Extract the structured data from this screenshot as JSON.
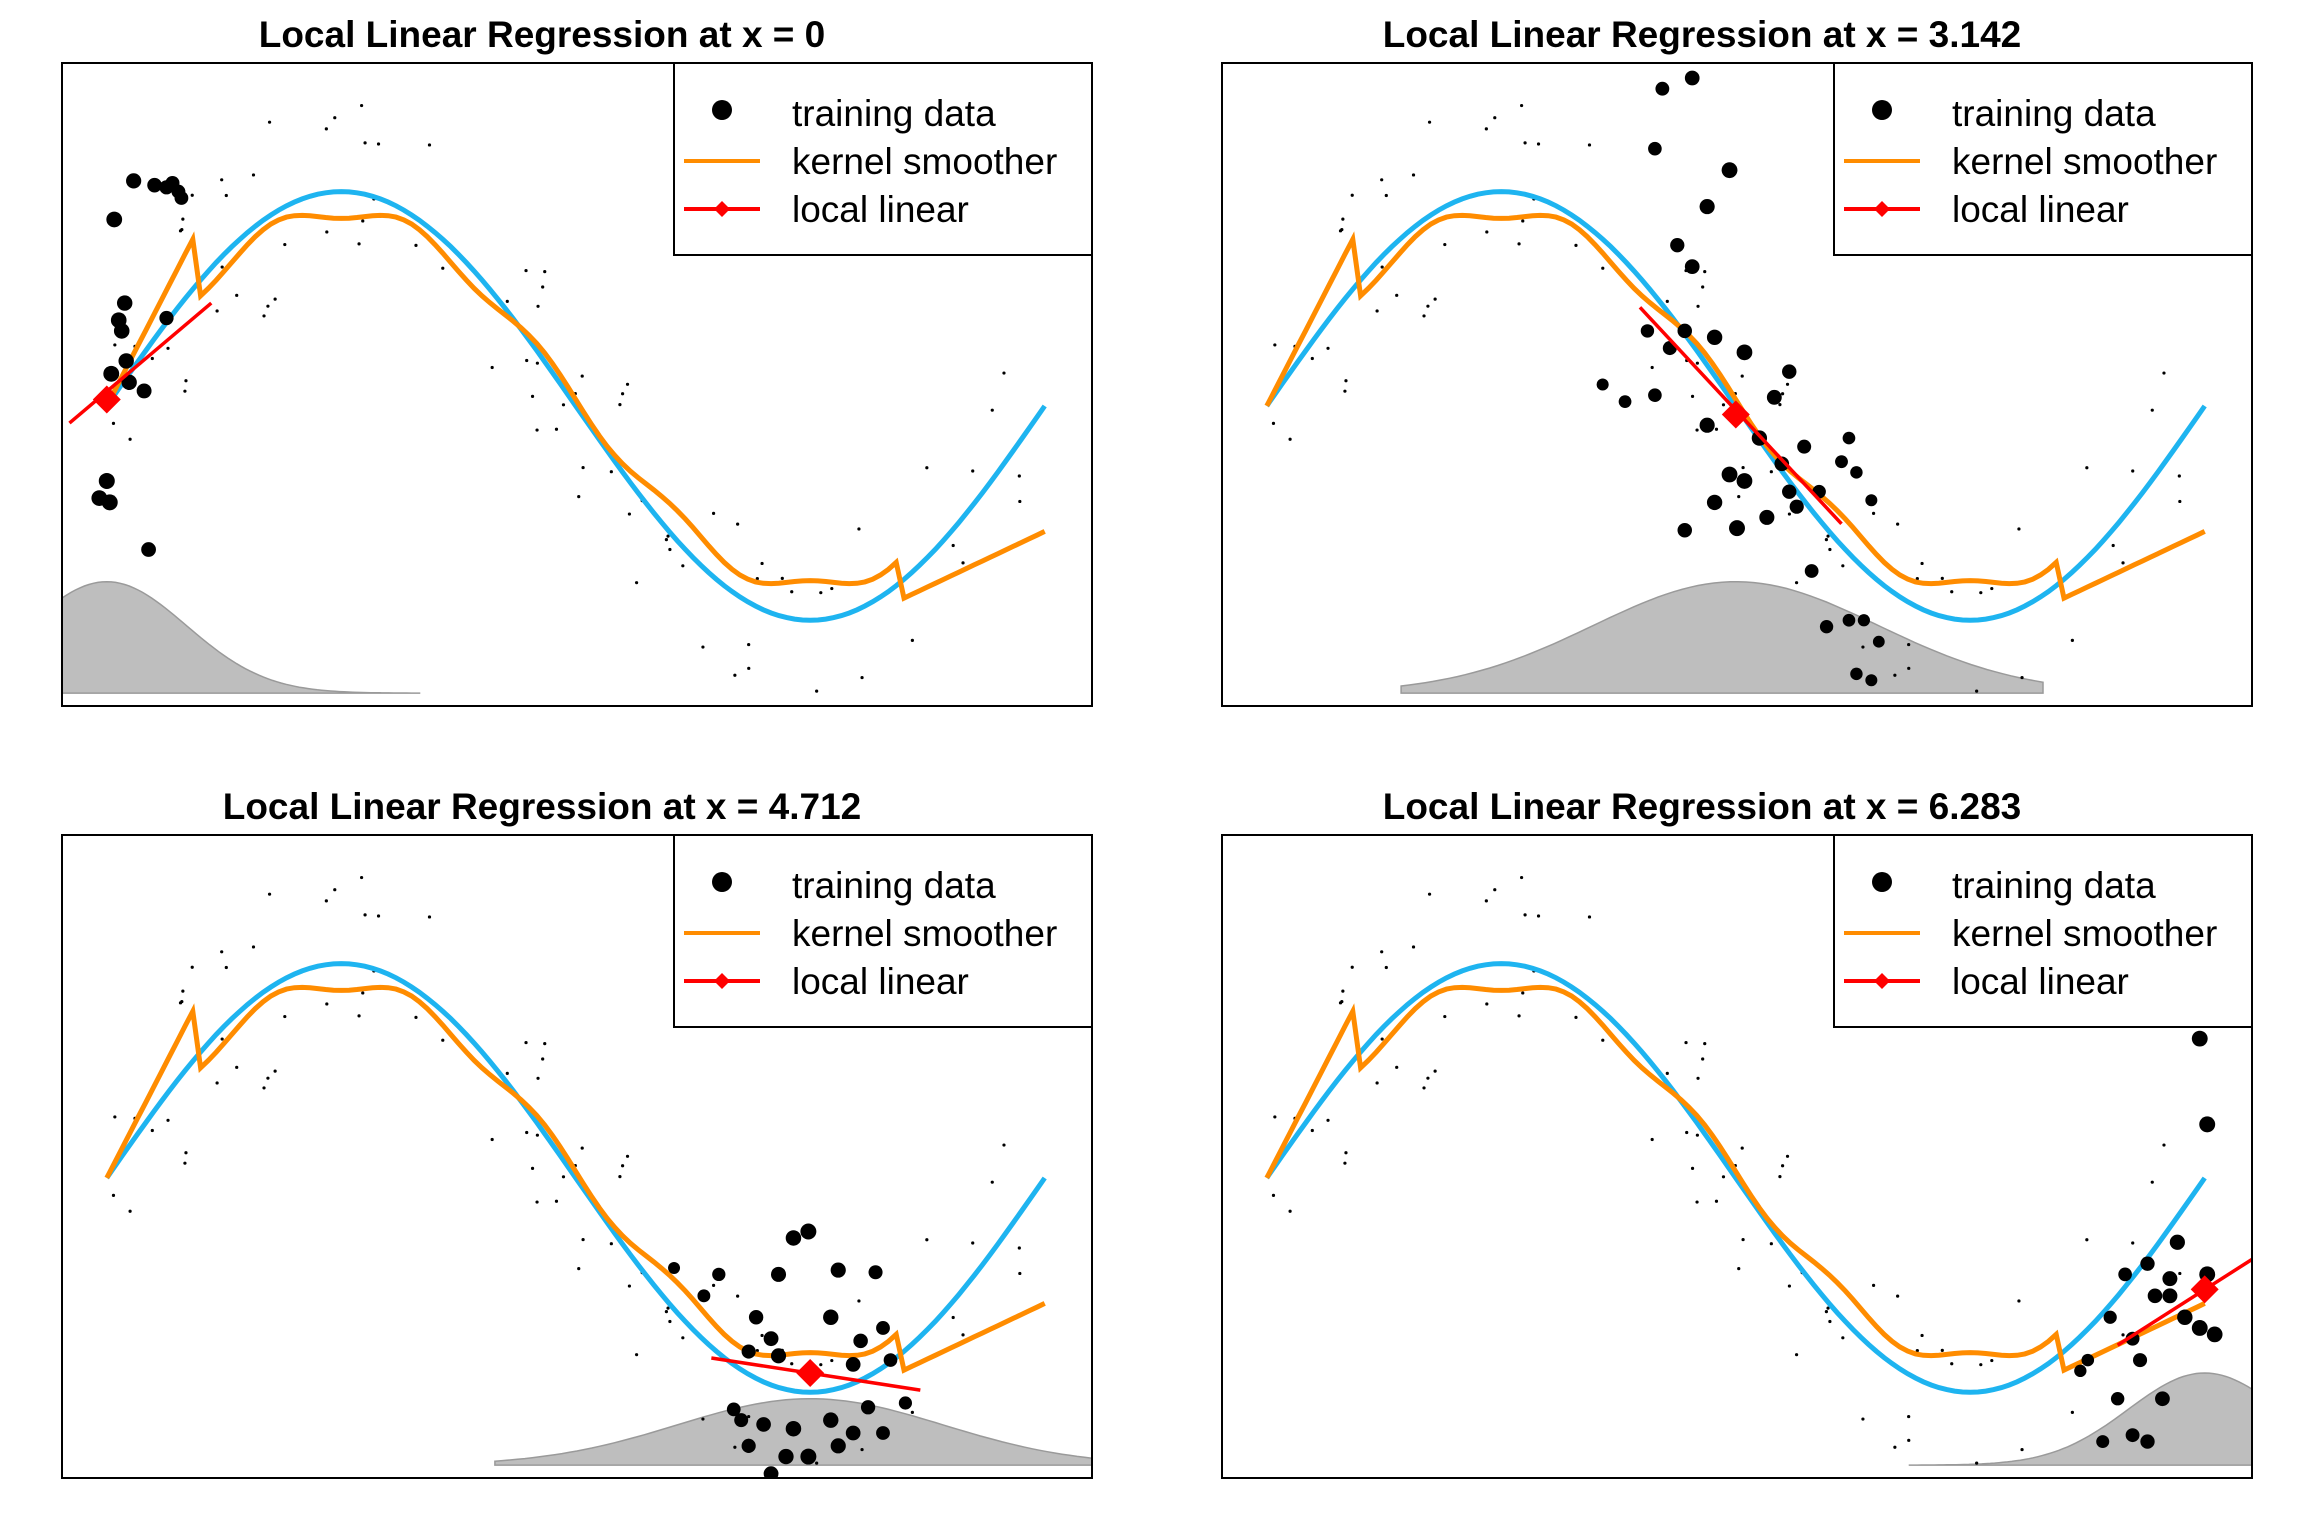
{
  "legend": {
    "items": [
      {
        "label": "training data",
        "symbol": "point",
        "color": "#000000"
      },
      {
        "label": "kernel smoother",
        "symbol": "line",
        "color": "#FF8C00"
      },
      {
        "label": "local linear",
        "symbol": "line-diamond",
        "color": "#FF0000"
      }
    ]
  },
  "colors": {
    "truth": "#1EB4F0",
    "kernel": "#FF8C00",
    "local": "#FF0000",
    "kernel_weight_fill": "#BEBEBE",
    "points": "#000000"
  },
  "chart_data": [
    {
      "type": "scatter",
      "title": "Local Linear Regression at x = 0",
      "x0": 0,
      "xlim": [
        -0.3,
        6.6
      ],
      "ylim": [
        -1.45,
        1.55
      ],
      "axes_ticks": false,
      "grid": false,
      "legend_position": "top-right",
      "local_linear": {
        "x": [
          -0.25,
          0.7
        ],
        "y": [
          -0.13,
          0.43
        ],
        "at": [
          0.0,
          -0.02
        ]
      },
      "kernel_weights": {
        "center": 0.0,
        "range": [
          -0.3,
          2.1
        ],
        "peak_y": -0.87,
        "base_y": -1.39
      },
      "highlight_points": [
        [
          0.05,
          0.82
        ],
        [
          0.18,
          1.0
        ],
        [
          0.32,
          0.98
        ],
        [
          0.4,
          0.97
        ],
        [
          0.44,
          0.99
        ],
        [
          0.48,
          0.95
        ],
        [
          0.12,
          0.43
        ],
        [
          0.1,
          0.3
        ],
        [
          0.13,
          0.16
        ],
        [
          0.08,
          0.35
        ],
        [
          0.03,
          0.1
        ],
        [
          0.0,
          -0.4
        ],
        [
          -0.05,
          -0.48
        ],
        [
          0.02,
          -0.5
        ],
        [
          0.15,
          0.06
        ],
        [
          0.25,
          0.02
        ],
        [
          0.28,
          -0.72
        ],
        [
          0.4,
          0.36
        ],
        [
          0.5,
          0.92
        ]
      ]
    },
    {
      "type": "scatter",
      "title": "Local Linear Regression at x = 3.142",
      "x0": 3.142,
      "xlim": [
        -0.3,
        6.6
      ],
      "ylim": [
        -1.45,
        1.55
      ],
      "axes_ticks": false,
      "grid": false,
      "legend_position": "top-right",
      "local_linear": {
        "x": [
          2.5,
          3.85
        ],
        "y": [
          0.41,
          -0.6
        ],
        "at": [
          3.142,
          -0.09
        ]
      },
      "kernel_weights": {
        "center": 3.142,
        "range": [
          0.9,
          5.2
        ],
        "peak_y": -0.87,
        "base_y": -1.39
      },
      "highlight_points": [
        [
          2.65,
          1.43
        ],
        [
          2.85,
          1.48
        ],
        [
          2.6,
          1.15
        ],
        [
          3.1,
          1.05
        ],
        [
          2.95,
          0.88
        ],
        [
          2.75,
          0.7
        ],
        [
          2.85,
          0.6
        ],
        [
          2.55,
          0.3
        ],
        [
          2.8,
          0.3
        ],
        [
          3.0,
          0.27
        ],
        [
          3.2,
          0.2
        ],
        [
          3.5,
          0.11
        ],
        [
          3.4,
          -0.01
        ],
        [
          2.7,
          0.22
        ],
        [
          2.6,
          0.0
        ],
        [
          2.25,
          0.05
        ],
        [
          2.4,
          -0.03
        ],
        [
          2.95,
          -0.14
        ],
        [
          3.3,
          -0.2
        ],
        [
          3.45,
          -0.32
        ],
        [
          3.6,
          -0.24
        ],
        [
          3.1,
          -0.37
        ],
        [
          3.2,
          -0.4
        ],
        [
          3.0,
          -0.5
        ],
        [
          3.15,
          -0.62
        ],
        [
          2.8,
          -0.63
        ],
        [
          3.35,
          -0.57
        ],
        [
          3.5,
          -0.45
        ],
        [
          3.7,
          -0.45
        ],
        [
          3.85,
          -0.31
        ],
        [
          3.9,
          -0.2
        ],
        [
          3.55,
          -0.52
        ],
        [
          3.95,
          -0.36
        ],
        [
          4.05,
          -0.49
        ],
        [
          3.65,
          -0.82
        ],
        [
          3.9,
          -1.05
        ],
        [
          3.75,
          -1.08
        ],
        [
          4.0,
          -1.05
        ],
        [
          4.1,
          -1.15
        ],
        [
          3.95,
          -1.3
        ],
        [
          4.05,
          -1.33
        ]
      ]
    },
    {
      "type": "scatter",
      "title": "Local Linear Regression at x = 4.712",
      "x0": 4.712,
      "xlim": [
        -0.3,
        6.6
      ],
      "ylim": [
        -1.45,
        1.55
      ],
      "axes_ticks": false,
      "grid": false,
      "legend_position": "top-right",
      "local_linear": {
        "x": [
          4.05,
          5.45
        ],
        "y": [
          -0.89,
          -1.04
        ],
        "at": [
          4.712,
          -0.96
        ]
      },
      "kernel_weights": {
        "center": 4.712,
        "range": [
          2.6,
          6.6
        ],
        "peak_y": -1.08,
        "base_y": -1.39
      },
      "highlight_points": [
        [
          4.6,
          -0.33
        ],
        [
          4.9,
          -0.48
        ],
        [
          4.7,
          -0.3
        ],
        [
          4.5,
          -0.5
        ],
        [
          5.15,
          -0.49
        ],
        [
          5.2,
          -0.75
        ],
        [
          4.45,
          -0.8
        ],
        [
          4.5,
          -0.88
        ],
        [
          4.3,
          -0.86
        ],
        [
          4.35,
          -0.7
        ],
        [
          4.1,
          -0.5
        ],
        [
          4.0,
          -0.6
        ],
        [
          3.8,
          -0.47
        ],
        [
          4.85,
          -0.7
        ],
        [
          5.05,
          -0.81
        ],
        [
          5.0,
          -0.92
        ],
        [
          5.25,
          -0.9
        ],
        [
          4.4,
          -1.2
        ],
        [
          4.6,
          -1.22
        ],
        [
          4.85,
          -1.18
        ],
        [
          5.1,
          -1.12
        ],
        [
          5.35,
          -1.1
        ],
        [
          4.7,
          -1.35
        ],
        [
          4.9,
          -1.3
        ],
        [
          5.0,
          -1.24
        ],
        [
          4.55,
          -1.35
        ],
        [
          4.2,
          -1.13
        ],
        [
          5.2,
          -1.24
        ],
        [
          4.45,
          -1.43
        ],
        [
          4.25,
          -1.18
        ],
        [
          4.3,
          -1.3
        ]
      ]
    },
    {
      "type": "scatter",
      "title": "Local Linear Regression at x = 6.283",
      "x0": 6.283,
      "xlim": [
        -0.3,
        6.6
      ],
      "ylim": [
        -1.45,
        1.55
      ],
      "axes_ticks": false,
      "grid": false,
      "legend_position": "top-right",
      "local_linear": {
        "x": [
          5.7,
          6.6
        ],
        "y": [
          -0.83,
          -0.43
        ],
        "at": [
          6.283,
          -0.57
        ]
      },
      "kernel_weights": {
        "center": 6.283,
        "range": [
          4.3,
          6.6
        ],
        "peak_y": -0.96,
        "base_y": -1.39
      },
      "highlight_points": [
        [
          6.2,
          1.35
        ],
        [
          6.25,
          0.6
        ],
        [
          6.3,
          0.2
        ],
        [
          5.9,
          -0.45
        ],
        [
          6.05,
          -0.6
        ],
        [
          6.15,
          -0.7
        ],
        [
          6.25,
          -0.75
        ],
        [
          6.3,
          -0.5
        ],
        [
          6.05,
          -0.52
        ],
        [
          5.95,
          -0.6
        ],
        [
          5.8,
          -0.8
        ],
        [
          5.85,
          -0.9
        ],
        [
          6.35,
          -0.78
        ],
        [
          6.0,
          -1.08
        ],
        [
          5.8,
          -1.25
        ],
        [
          5.6,
          -1.28
        ],
        [
          5.9,
          -1.28
        ],
        [
          5.7,
          -1.08
        ],
        [
          5.5,
          -0.9
        ],
        [
          5.65,
          -0.7
        ],
        [
          5.45,
          -0.95
        ],
        [
          5.75,
          -0.5
        ],
        [
          6.1,
          -0.35
        ]
      ]
    }
  ]
}
